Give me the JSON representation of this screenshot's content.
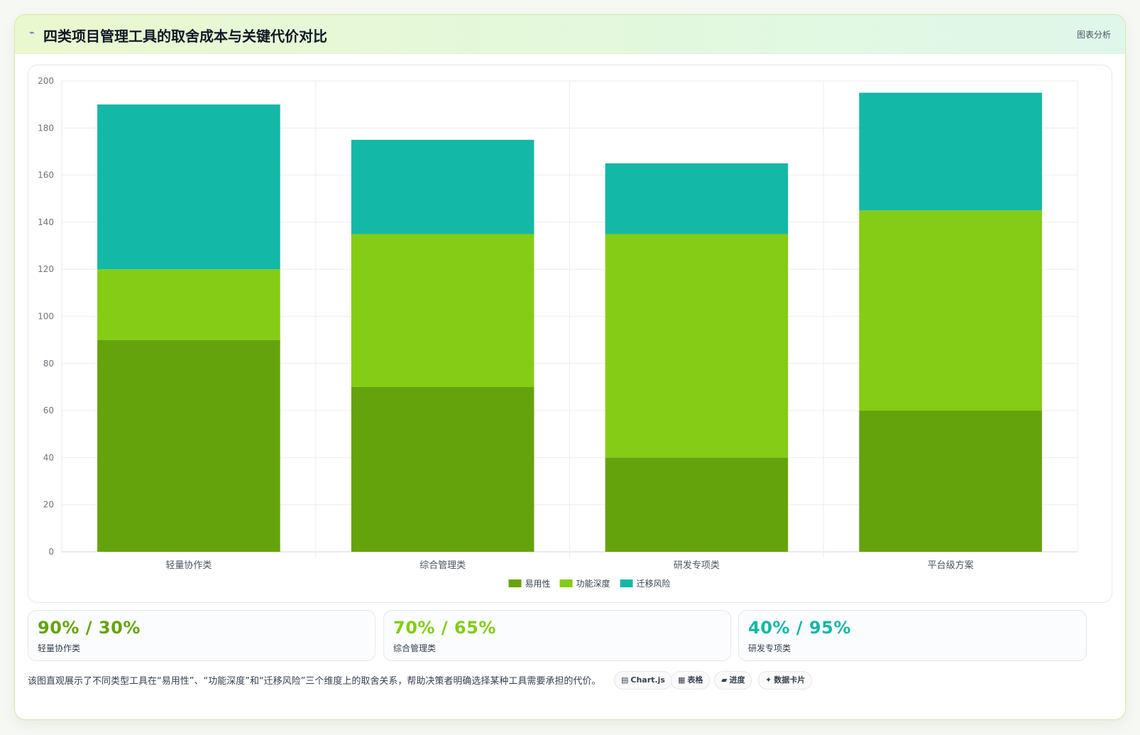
{
  "header": {
    "title": "四类项目管理工具的取舍成本与关键代价对比",
    "badge": "图表分析"
  },
  "chart_data": {
    "type": "bar",
    "stacked": true,
    "categories": [
      "轻量协作类",
      "综合管理类",
      "研发专项类",
      "平台级方案"
    ],
    "series": [
      {
        "name": "易用性",
        "color": "#65a30d",
        "values": [
          90,
          70,
          40,
          60
        ]
      },
      {
        "name": "功能深度",
        "color": "#84cc16",
        "values": [
          30,
          65,
          95,
          85
        ]
      },
      {
        "name": "迁移风险",
        "color": "#14b8a6",
        "values": [
          70,
          40,
          30,
          50
        ]
      }
    ],
    "ylim": [
      0,
      200
    ],
    "yticks": [
      0,
      20,
      40,
      60,
      80,
      100,
      120,
      140,
      160,
      180,
      200
    ],
    "grid": true,
    "legend": "bottom-center"
  },
  "stats": [
    {
      "value": "90% / 30%",
      "label": "轻量协作类",
      "color": "#65a30d"
    },
    {
      "value": "70% / 65%",
      "label": "综合管理类",
      "color": "#84cc16"
    },
    {
      "value": "40% / 95%",
      "label": "研发专项类",
      "color": "#14b8a6"
    }
  ],
  "footer": {
    "description": "该图直观展示了不同类型工具在“易用性”、“功能深度”和“迁移风险”三个维度上的取舍关系，帮助决策者明确选择某种工具需要承担的代价。",
    "tags": [
      {
        "icon": "▤",
        "icon_name": "chart-icon",
        "label": "Chart.js"
      },
      {
        "icon": "▦",
        "icon_name": "table-icon",
        "label": "表格"
      },
      {
        "icon": "▰",
        "icon_name": "progress-icon",
        "label": "进度"
      },
      {
        "icon": "✦",
        "icon_name": "sparkle-icon",
        "label": "数据卡片"
      }
    ]
  }
}
